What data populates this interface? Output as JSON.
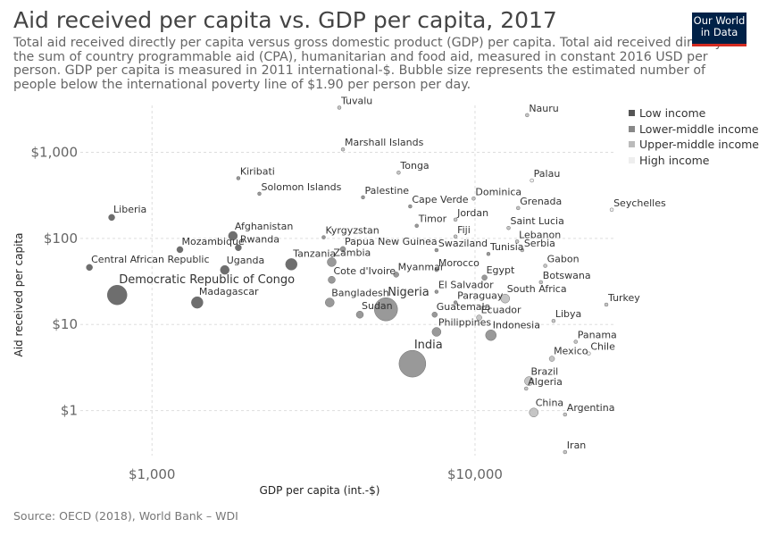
{
  "title": "Aid received per capita vs. GDP per capita, 2017",
  "subtitle": "Total aid received directly per capita versus gross domestic product (GDP) per capita. Total aid received directly is the sum of country programmable aid (CPA), humanitarian and food aid, measured in constant 2016 USD per person. GDP per capita is measured in 2011 international-$. Bubble size represents the estimated number of people below the international poverty line of $1.90 per person per day.",
  "logo": {
    "line1": "Our World",
    "line2": "in Data"
  },
  "source": "Source: OECD (2018), World Bank – WDI",
  "colors": {
    "low": "#555555",
    "lower_middle": "#888888",
    "upper_middle": "#bbbbbb",
    "high": "#eeeeee"
  },
  "legend": [
    {
      "key": "low",
      "label": "Low income"
    },
    {
      "key": "lower_middle",
      "label": "Lower-middle income"
    },
    {
      "key": "upper_middle",
      "label": "Upper-middle income"
    },
    {
      "key": "high",
      "label": "High income"
    }
  ],
  "chart_data": {
    "type": "scatter",
    "xlabel": "GDP per capita (int.-$)",
    "ylabel": "Aid received per capita",
    "x_scale": "log",
    "y_scale": "log",
    "xlim": [
      600,
      27000
    ],
    "ylim": [
      0.3,
      3500
    ],
    "x_ticks": [
      {
        "value": 1000,
        "label": "$1,000"
      },
      {
        "value": 10000,
        "label": "$10,000"
      }
    ],
    "y_ticks": [
      {
        "value": 1,
        "label": "$1"
      },
      {
        "value": 10,
        "label": "$10"
      },
      {
        "value": 100,
        "label": "$100"
      },
      {
        "value": 1000,
        "label": "$1,000"
      }
    ],
    "grid": true,
    "legend_position": "top-right",
    "points": [
      {
        "name": "Tuvalu",
        "x": 3800,
        "y": 3300,
        "group": "upper_middle",
        "r": 2
      },
      {
        "name": "Nauru",
        "x": 14500,
        "y": 2700,
        "group": "upper_middle",
        "r": 2
      },
      {
        "name": "Marshall Islands",
        "x": 3900,
        "y": 1080,
        "group": "upper_middle",
        "r": 2
      },
      {
        "name": "Tonga",
        "x": 5800,
        "y": 580,
        "group": "upper_middle",
        "r": 2
      },
      {
        "name": "Kiribati",
        "x": 1850,
        "y": 500,
        "group": "lower_middle",
        "r": 2
      },
      {
        "name": "Palau",
        "x": 15000,
        "y": 470,
        "group": "high",
        "r": 2
      },
      {
        "name": "Solomon Islands",
        "x": 2150,
        "y": 330,
        "group": "lower_middle",
        "r": 2
      },
      {
        "name": "Palestine",
        "x": 4500,
        "y": 300,
        "group": "lower_middle",
        "r": 2
      },
      {
        "name": "Dominica",
        "x": 9900,
        "y": 290,
        "group": "upper_middle",
        "r": 2
      },
      {
        "name": "Grenada",
        "x": 13600,
        "y": 225,
        "group": "upper_middle",
        "r": 2
      },
      {
        "name": "Seychelles",
        "x": 26500,
        "y": 215,
        "group": "high",
        "r": 2
      },
      {
        "name": "Cape Verde",
        "x": 6300,
        "y": 235,
        "group": "lower_middle",
        "r": 2
      },
      {
        "name": "Liberia",
        "x": 750,
        "y": 175,
        "group": "low",
        "r": 3.5
      },
      {
        "name": "Jordan",
        "x": 8700,
        "y": 165,
        "group": "upper_middle",
        "r": 2
      },
      {
        "name": "Timor",
        "x": 6600,
        "y": 140,
        "group": "lower_middle",
        "r": 2
      },
      {
        "name": "Saint Lucia",
        "x": 12700,
        "y": 132,
        "group": "upper_middle",
        "r": 2
      },
      {
        "name": "Fiji",
        "x": 8700,
        "y": 105,
        "group": "upper_middle",
        "r": 2
      },
      {
        "name": "Afghanistan",
        "x": 1780,
        "y": 107,
        "group": "low",
        "r": 5
      },
      {
        "name": "Kyrgyzstan",
        "x": 3400,
        "y": 103,
        "group": "lower_middle",
        "r": 2
      },
      {
        "name": "Lebanon",
        "x": 13500,
        "y": 92,
        "group": "upper_middle",
        "r": 2
      },
      {
        "name": "Rwanda",
        "x": 1850,
        "y": 78,
        "group": "low",
        "r": 3.5
      },
      {
        "name": "Mozambique",
        "x": 1220,
        "y": 74,
        "group": "low",
        "r": 3.5
      },
      {
        "name": "Papua New Guinea",
        "x": 3900,
        "y": 75,
        "group": "lower_middle",
        "r": 3
      },
      {
        "name": "Swaziland",
        "x": 7600,
        "y": 73,
        "group": "lower_middle",
        "r": 2
      },
      {
        "name": "Serbia",
        "x": 14000,
        "y": 73,
        "group": "upper_middle",
        "r": 2
      },
      {
        "name": "Tunisia",
        "x": 11000,
        "y": 66,
        "group": "lower_middle",
        "r": 2
      },
      {
        "name": "Tanzania",
        "x": 2700,
        "y": 50,
        "group": "low",
        "r": 6.5
      },
      {
        "name": "Zambia",
        "x": 3600,
        "y": 53,
        "group": "lower_middle",
        "r": 5
      },
      {
        "name": "Central African Republic",
        "x": 640,
        "y": 46,
        "group": "low",
        "r": 3.5
      },
      {
        "name": "Uganda",
        "x": 1680,
        "y": 43,
        "group": "low",
        "r": 5
      },
      {
        "name": "Gabon",
        "x": 16500,
        "y": 48,
        "group": "upper_middle",
        "r": 2
      },
      {
        "name": "Myanmar",
        "x": 5700,
        "y": 38,
        "group": "lower_middle",
        "r": 3
      },
      {
        "name": "Morocco",
        "x": 7600,
        "y": 43,
        "group": "lower_middle",
        "r": 2
      },
      {
        "name": "Cote d'Ivoire",
        "x": 3600,
        "y": 33,
        "group": "lower_middle",
        "r": 4
      },
      {
        "name": "Egypt",
        "x": 10700,
        "y": 35,
        "group": "lower_middle",
        "r": 3
      },
      {
        "name": "Botswana",
        "x": 16000,
        "y": 31,
        "group": "upper_middle",
        "r": 2
      },
      {
        "name": "Democratic Republic of Congo",
        "x": 780,
        "y": 22,
        "group": "low",
        "r": 11
      },
      {
        "name": "Madagascar",
        "x": 1380,
        "y": 18,
        "group": "low",
        "r": 6.5
      },
      {
        "name": "El Salvador",
        "x": 7600,
        "y": 24,
        "group": "lower_middle",
        "r": 2
      },
      {
        "name": "Bangladesh",
        "x": 3550,
        "y": 18,
        "group": "lower_middle",
        "r": 5
      },
      {
        "name": "Nigeria",
        "x": 5300,
        "y": 15,
        "group": "lower_middle",
        "r": 13
      },
      {
        "name": "Paraguay",
        "x": 8700,
        "y": 18,
        "group": "lower_middle",
        "r": 2
      },
      {
        "name": "South Africa",
        "x": 12400,
        "y": 20,
        "group": "upper_middle",
        "r": 5
      },
      {
        "name": "Turkey",
        "x": 25500,
        "y": 17,
        "group": "upper_middle",
        "r": 2
      },
      {
        "name": "Sudan",
        "x": 4400,
        "y": 13,
        "group": "lower_middle",
        "r": 4
      },
      {
        "name": "Guatemala",
        "x": 7500,
        "y": 13,
        "group": "lower_middle",
        "r": 3
      },
      {
        "name": "Ecuador",
        "x": 10300,
        "y": 12,
        "group": "upper_middle",
        "r": 3
      },
      {
        "name": "Libya",
        "x": 17500,
        "y": 11,
        "group": "upper_middle",
        "r": 2
      },
      {
        "name": "Philippines",
        "x": 7600,
        "y": 8.2,
        "group": "lower_middle",
        "r": 5
      },
      {
        "name": "Indonesia",
        "x": 11200,
        "y": 7.5,
        "group": "lower_middle",
        "r": 6
      },
      {
        "name": "Panama",
        "x": 20500,
        "y": 6.3,
        "group": "upper_middle",
        "r": 2
      },
      {
        "name": "Mexico",
        "x": 17300,
        "y": 4,
        "group": "upper_middle",
        "r": 3
      },
      {
        "name": "Chile",
        "x": 22500,
        "y": 4.6,
        "group": "high",
        "r": 2
      },
      {
        "name": "India",
        "x": 6400,
        "y": 3.5,
        "group": "lower_middle",
        "r": 15
      },
      {
        "name": "Brazil",
        "x": 14700,
        "y": 2.2,
        "group": "upper_middle",
        "r": 5
      },
      {
        "name": "Algeria",
        "x": 14400,
        "y": 1.8,
        "group": "upper_middle",
        "r": 2
      },
      {
        "name": "China",
        "x": 15200,
        "y": 0.95,
        "group": "upper_middle",
        "r": 5
      },
      {
        "name": "Argentina",
        "x": 19000,
        "y": 0.9,
        "group": "upper_middle",
        "r": 2
      },
      {
        "name": "Iran",
        "x": 19000,
        "y": 0.33,
        "group": "upper_middle",
        "r": 2
      }
    ]
  }
}
